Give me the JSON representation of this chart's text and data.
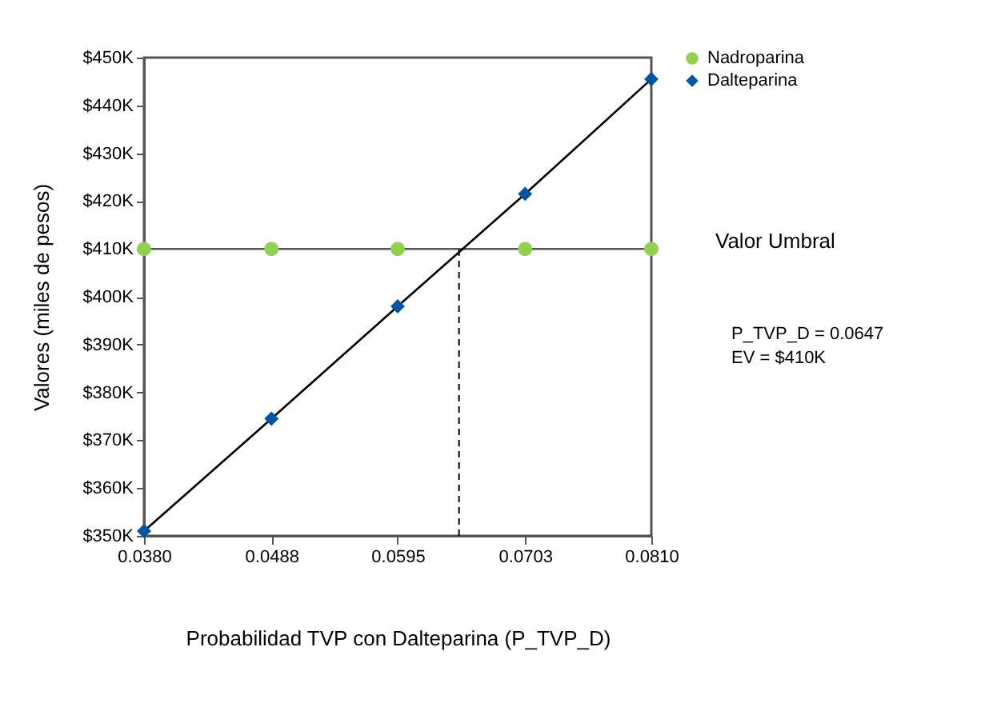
{
  "chart_data": {
    "type": "line",
    "xlabel": "Probabilidad TVP con Dalteparina (P_TVP_D)",
    "ylabel": "Valores (miles de pesos)",
    "x": [
      0.038,
      0.0488,
      0.0595,
      0.0703,
      0.081
    ],
    "series": [
      {
        "name": "Nadroparina",
        "color": "#92d050",
        "marker": "circle",
        "values": [
          410,
          410,
          410,
          410,
          410
        ]
      },
      {
        "name": "Dalteparina",
        "color": "#0055a5",
        "marker": "diamond",
        "values": [
          351,
          374.5,
          398,
          421.5,
          445.5
        ]
      }
    ],
    "xlim": [
      0.038,
      0.081
    ],
    "xticks": [
      {
        "value": 0.038,
        "label": "0.0380"
      },
      {
        "value": 0.0488,
        "label": "0.0488"
      },
      {
        "value": 0.0595,
        "label": "0.0595"
      },
      {
        "value": 0.0703,
        "label": "0.0703"
      },
      {
        "value": 0.081,
        "label": "0.0810"
      }
    ],
    "ylim": [
      350,
      450
    ],
    "yticks": [
      {
        "value": 350,
        "label": "$350K"
      },
      {
        "value": 360,
        "label": "$360K"
      },
      {
        "value": 370,
        "label": "$370K"
      },
      {
        "value": 380,
        "label": "$380K"
      },
      {
        "value": 390,
        "label": "$390K"
      },
      {
        "value": 400,
        "label": "$400K"
      },
      {
        "value": 410,
        "label": "$410K"
      },
      {
        "value": 420,
        "label": "$420K"
      },
      {
        "value": 430,
        "label": "$430K"
      },
      {
        "value": 440,
        "label": "$440K"
      },
      {
        "value": 450,
        "label": "$450K"
      }
    ],
    "ref_lines": [
      {
        "axis": "x",
        "value": 0.0647,
        "line_style": "dashed"
      }
    ],
    "annotations": [
      "Valor Umbral",
      "P_TVP_D = 0.0647\nEV = $410K"
    ],
    "legend": "top right"
  }
}
